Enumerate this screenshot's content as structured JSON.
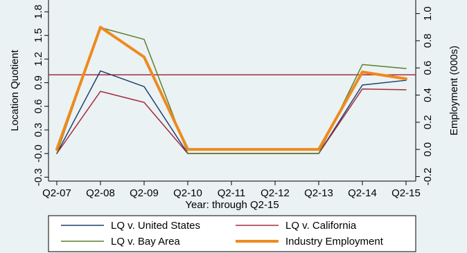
{
  "chart_data": {
    "type": "line",
    "categories": [
      "Q2-07",
      "Q2-08",
      "Q2-09",
      "Q2-10",
      "Q2-11",
      "Q2-12",
      "Q2-13",
      "Q2-14",
      "Q2-15"
    ],
    "xlabel": "Year: through Q2-15",
    "ylabel": "Location Quotient",
    "y2label": "Employment (000s)",
    "ylim": [
      -0.35,
      1.95
    ],
    "y2lim": [
      -0.2333,
      1.1
    ],
    "yticks": [
      -0.3,
      "-0.0",
      0.3,
      0.6,
      0.9,
      1.2,
      1.5,
      1.8
    ],
    "y2ticks": [
      -0.2,
      0.0,
      0.2,
      0.4,
      0.6,
      0.8,
      1.0
    ],
    "reference_line": {
      "axis": "left",
      "value": 1.0,
      "color": "#a8293e"
    },
    "grid": false,
    "legend_position": "bottom",
    "series": [
      {
        "name": "LQ v. United States",
        "axis": "left",
        "color": "#1f3e6e",
        "width": 1.5,
        "values": [
          0.0,
          1.05,
          0.85,
          0.0,
          0.0,
          0.0,
          0.0,
          0.87,
          0.93
        ]
      },
      {
        "name": "LQ v. California",
        "axis": "left",
        "color": "#a8293e",
        "width": 1.5,
        "values": [
          0.0,
          0.79,
          0.65,
          0.0,
          0.0,
          0.0,
          0.0,
          0.82,
          0.81
        ]
      },
      {
        "name": "LQ v. Bay Area",
        "axis": "left",
        "color": "#5a7f2e",
        "width": 1.5,
        "values": [
          0.0,
          1.6,
          1.45,
          0.0,
          0.0,
          0.0,
          0.0,
          1.13,
          1.08
        ]
      },
      {
        "name": "Industry Employment",
        "axis": "right",
        "color": "#ee8a1e",
        "width": 4,
        "values": [
          0.0,
          0.9,
          0.68,
          0.0,
          0.0,
          0.0,
          0.0,
          0.57,
          0.52
        ]
      }
    ]
  }
}
